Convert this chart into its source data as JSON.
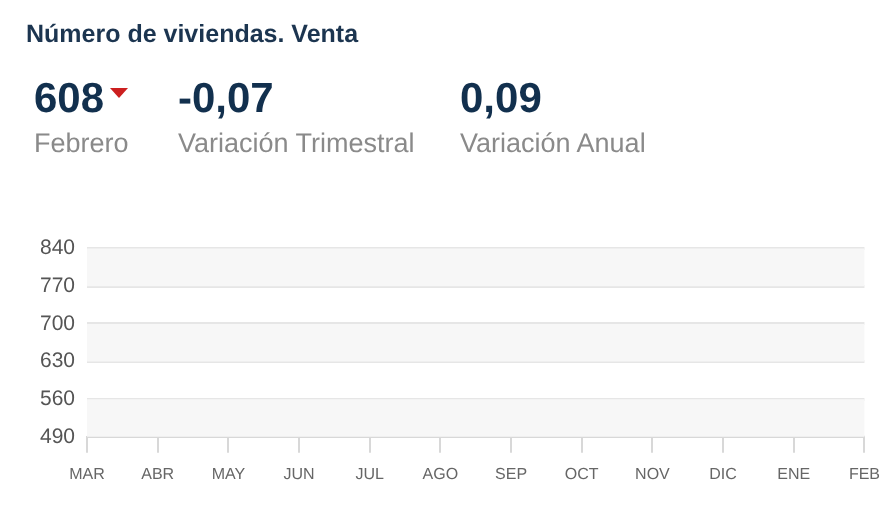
{
  "chart_data": [
    {
      "type": "other",
      "title": "Número de viviendas. Venta",
      "annotations": [
        "608",
        "Febrero",
        "-0,07",
        "Variación Trimestral",
        "0,09",
        "Variación Anual"
      ]
    },
    {
      "type": "line",
      "categories": [
        "MAR",
        "ABR",
        "MAY",
        "JUN",
        "JUL",
        "AGO",
        "SEP",
        "OCT",
        "NOV",
        "DIC",
        "ENE",
        "FEB"
      ],
      "values": [
        null,
        null,
        null,
        null,
        null,
        null,
        null,
        null,
        null,
        null,
        null,
        null
      ],
      "ylim": [
        490,
        840
      ],
      "yticks": [
        490,
        560,
        630,
        700,
        770,
        840
      ],
      "grid": "y",
      "bands": [
        {
          "axis": "y",
          "from": 490,
          "to": 560,
          "color": "#f7f7f7"
        },
        {
          "axis": "y",
          "from": 630,
          "to": 700,
          "color": "#f7f7f7"
        },
        {
          "axis": "y",
          "from": 770,
          "to": 840,
          "color": "#f7f7f7"
        }
      ]
    }
  ]
}
